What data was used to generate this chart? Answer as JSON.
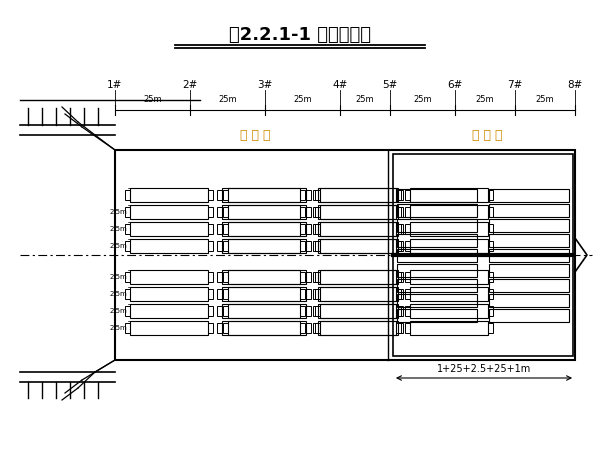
{
  "bg_color": "#ffffff",
  "line_color": "#000000",
  "title": "图2.2.1-1 预制场布置",
  "title_fontsize": 13,
  "label_zone1": "预 制 区",
  "label_zone2": "存 梁 区",
  "dim_top": "1+25+2.5+25+1m",
  "dim_bottom_labels": [
    "25m",
    "25m",
    "25m",
    "25m",
    "25m",
    "25m",
    "25m"
  ],
  "pier_labels": [
    "1#",
    "2#",
    "3#",
    "4#",
    "5#",
    "6#",
    "7#",
    "8#"
  ],
  "fig_width": 6.0,
  "fig_height": 4.5,
  "dpi": 100
}
